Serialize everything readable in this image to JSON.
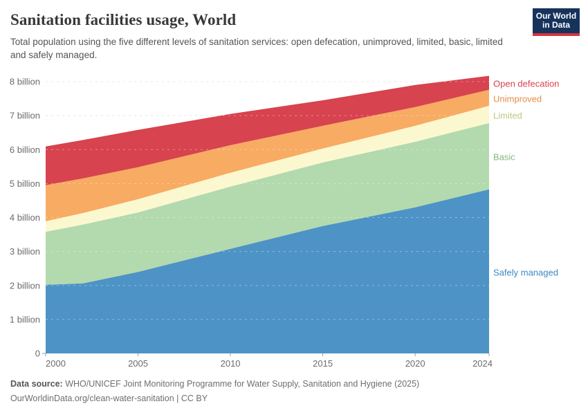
{
  "header": {
    "title": "Sanitation facilities usage, World",
    "subtitle": "Total population using the five different levels of sanitation services: open defecation, unimproved, limited, basic, limited and safely managed.",
    "logo": {
      "line1": "Our World",
      "line2": "in Data",
      "bg_color": "#16335b",
      "accent_color": "#d7333f"
    }
  },
  "chart_data": {
    "type": "area",
    "stacked": true,
    "title": "Sanitation facilities usage, World",
    "xlabel": "",
    "ylabel": "",
    "x": [
      2000,
      2002,
      2005,
      2010,
      2015,
      2020,
      2024
    ],
    "series": [
      {
        "name": "Safely managed",
        "color": "#4d93c6",
        "label_color": "#3d89c3",
        "values": [
          2.02,
          2.06,
          2.4,
          3.08,
          3.75,
          4.3,
          4.83
        ]
      },
      {
        "name": "Basic",
        "color": "#b3d9ae",
        "label_color": "#84b97f",
        "values": [
          1.56,
          1.73,
          1.75,
          1.83,
          1.87,
          1.93,
          1.95
        ]
      },
      {
        "name": "Limited",
        "color": "#fbf8cf",
        "label_color": "#bdc882",
        "values": [
          0.31,
          0.34,
          0.39,
          0.41,
          0.41,
          0.47,
          0.51
        ]
      },
      {
        "name": "Unimproved",
        "color": "#f8ab63",
        "label_color": "#e68c4a",
        "values": [
          1.06,
          1.02,
          0.94,
          0.81,
          0.67,
          0.55,
          0.47
        ]
      },
      {
        "name": "Open defecation",
        "color": "#d7434e",
        "label_color": "#d7434e",
        "values": [
          1.14,
          1.13,
          1.1,
          0.92,
          0.75,
          0.65,
          0.41
        ]
      }
    ],
    "x_ticks": [
      2000,
      2005,
      2010,
      2015,
      2020,
      2024
    ],
    "y_ticks": [
      {
        "value": 0,
        "label": "0"
      },
      {
        "value": 1,
        "label": "1 billion"
      },
      {
        "value": 2,
        "label": "2 billion"
      },
      {
        "value": 3,
        "label": "3 billion"
      },
      {
        "value": 4,
        "label": "4 billion"
      },
      {
        "value": 5,
        "label": "5 billion"
      },
      {
        "value": 6,
        "label": "6 billion"
      },
      {
        "value": 7,
        "label": "7 billion"
      },
      {
        "value": 8,
        "label": "8 billion"
      }
    ],
    "xlim": [
      2000,
      2024
    ],
    "ylim": [
      0,
      8
    ],
    "grid": "dashed",
    "legend_position": "right"
  },
  "footer": {
    "source_prefix": "Data source:",
    "source_text": " WHO/UNICEF Joint Monitoring Programme for Water Supply, Sanitation and Hygiene (2025)",
    "link_line": "OurWorldinData.org/clean-water-sanitation | CC BY"
  }
}
